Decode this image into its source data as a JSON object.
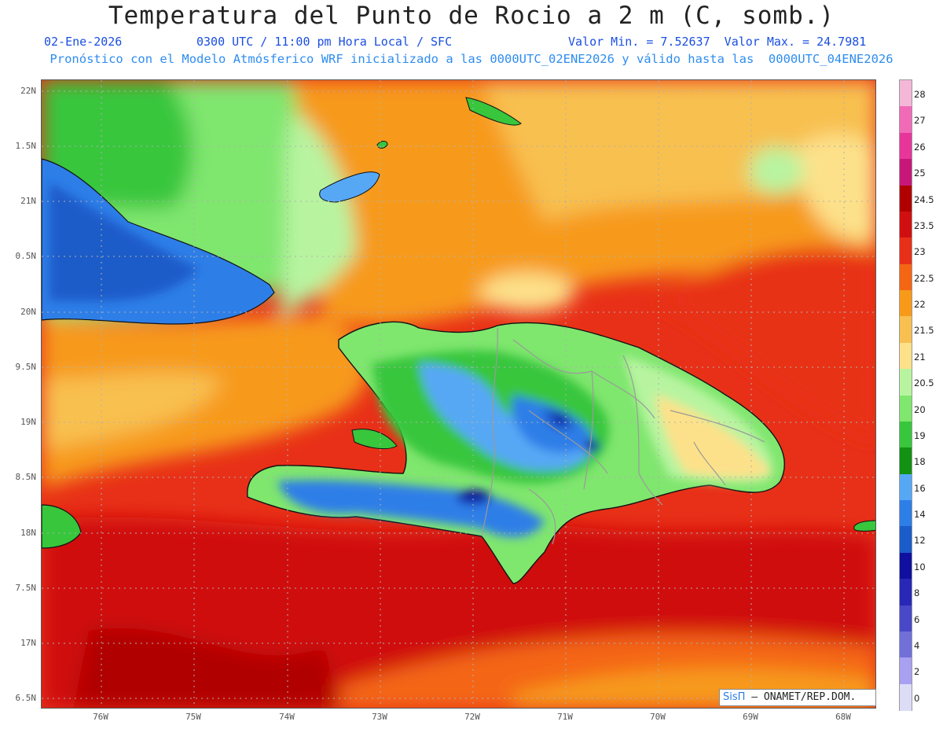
{
  "header": {
    "title": "Temperatura del Punto de Rocio a 2 m (C, somb.)",
    "date": "02-Ene-2026",
    "time_info": "0300 UTC / 11:00 pm Hora Local / SFC",
    "value_range": "Valor Min. = 7.52637  Valor Max. = 24.7981",
    "model_info": "Pronóstico con el Modelo Atmósferico WRF inicializado a las 0000UTC_02ENE2026 y válido hasta las  0000UTC_04ENE2026"
  },
  "axes": {
    "lat_labels": [
      "22N",
      "1.5N",
      "21N",
      "0.5N",
      "20N",
      "9.5N",
      "19N",
      "8.5N",
      "18N",
      "7.5N",
      "17N",
      "6.5N"
    ],
    "lon_labels": [
      "76W",
      "75W",
      "74W",
      "73W",
      "72W",
      "71W",
      "70W",
      "69W",
      "68W"
    ]
  },
  "colorbar": {
    "labels": [
      "28",
      "27",
      "26",
      "25",
      "24.5",
      "23.5",
      "23",
      "22.5",
      "22",
      "21.5",
      "21",
      "20.5",
      "20",
      "19",
      "18",
      "16",
      "14",
      "12",
      "10",
      "8",
      "6",
      "4",
      "2",
      "0"
    ],
    "colors": [
      "#f5b7d8",
      "#f06ab8",
      "#e7359a",
      "#c7187a",
      "#b00000",
      "#d01010",
      "#e83018",
      "#f46614",
      "#f79a1a",
      "#f8c050",
      "#fde18a",
      "#b8f4a0",
      "#7fe66e",
      "#38c63c",
      "#129112",
      "#56a8f5",
      "#2e7ee8",
      "#1a5cc9",
      "#1010a0",
      "#2828b8",
      "#4848c8",
      "#7070d8",
      "#a8a0f0",
      "#dcdcf7"
    ]
  },
  "credit": {
    "logo": "SisΠ",
    "text": " – ONAMET/REP.DOM."
  }
}
